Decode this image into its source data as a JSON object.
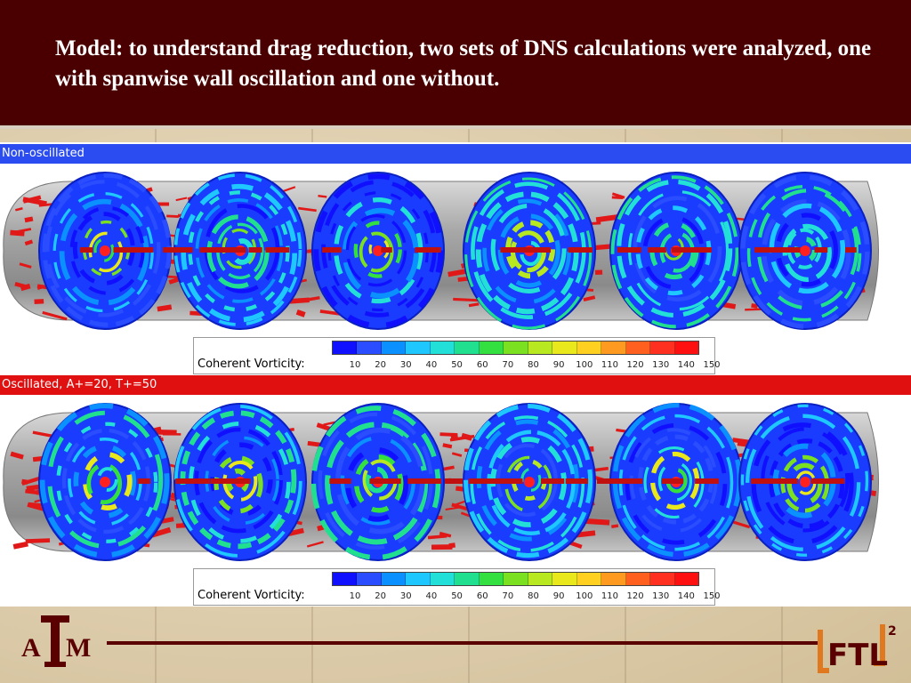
{
  "header": {
    "title": "Model:  to understand drag reduction, two sets of DNS calculations were analyzed, one with spanwise wall oscillation and one without."
  },
  "panels": [
    {
      "label": "Non-oscillated",
      "bar_color": "#2b4cf0"
    },
    {
      "label": "Oscillated, A+=20, T+=50",
      "bar_color": "#e01010"
    }
  ],
  "legend": {
    "title": "Coherent Vorticity:",
    "ticks": [
      "10",
      "20",
      "30",
      "40",
      "50",
      "60",
      "70",
      "80",
      "90",
      "100",
      "110",
      "120",
      "130",
      "140",
      "150"
    ],
    "colors": [
      "#1010ff",
      "#2a4dff",
      "#0a90ff",
      "#1ec8ff",
      "#22e0d8",
      "#20e090",
      "#34e040",
      "#7ae020",
      "#b8e820",
      "#e8e81c",
      "#ffd020",
      "#ff9a20",
      "#ff6020",
      "#ff3020",
      "#ff1010"
    ]
  },
  "logos": {
    "left_letters": "ATM",
    "right_text": "FTL",
    "right_superscript": "2"
  }
}
